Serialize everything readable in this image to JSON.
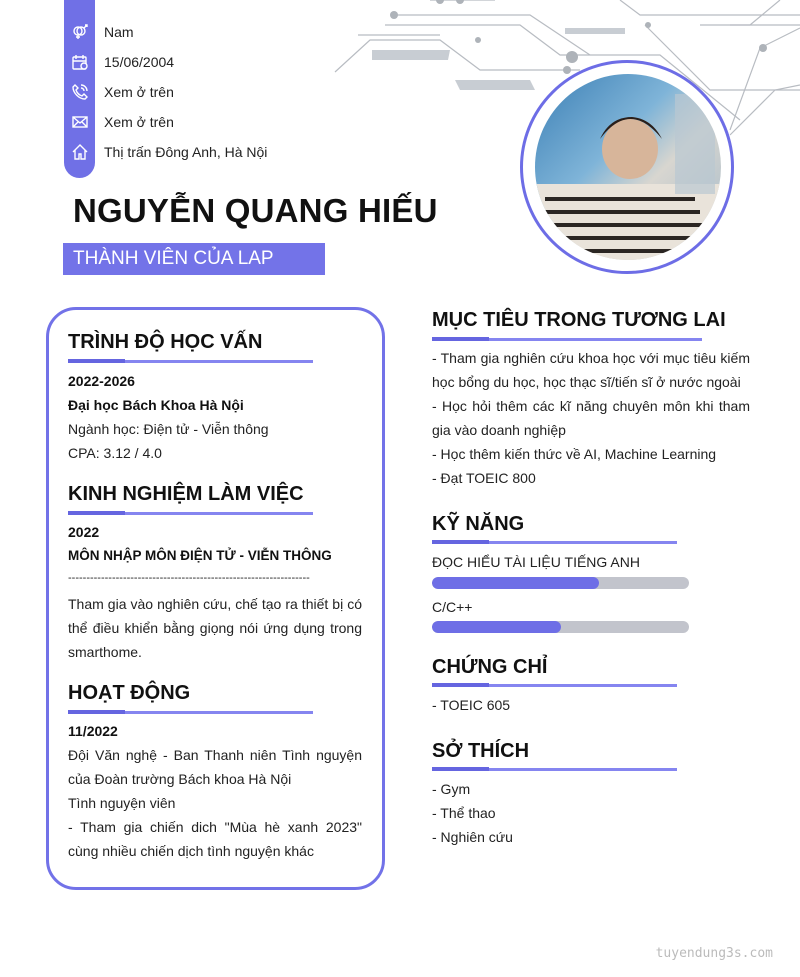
{
  "colors": {
    "accent": "#7070e6",
    "bar_track": "#c2c4cc"
  },
  "contact": [
    {
      "icon": "gender-icon",
      "text": "Nam"
    },
    {
      "icon": "calendar-icon",
      "text": "15/06/2004"
    },
    {
      "icon": "phone-icon",
      "text": "Xem ở trên"
    },
    {
      "icon": "mail-icon",
      "text": "Xem ở trên"
    },
    {
      "icon": "home-icon",
      "text": "Thị trấn Đông Anh, Hà Nội"
    }
  ],
  "name": "NGUYỄN QUANG HIẾU",
  "subtitle": "THÀNH VIÊN CỦA LAP",
  "education": {
    "title": "TRÌNH ĐỘ HỌC VẤN",
    "period": "2022-2026",
    "school": "Đại học Bách Khoa Hà Nội",
    "major": "Ngành học: Điện tử - Viễn thông",
    "cpa": "CPA: 3.12 / 4.0"
  },
  "experience": {
    "title": "KINH NGHIỆM LÀM VIỆC",
    "year": "2022",
    "role": "MÔN NHẬP MÔN ĐIỆN TỬ - VIỄN THÔNG",
    "divider": "------------------------------------------------------------------",
    "desc": "Tham gia vào nghiên cứu, chế tạo ra thiết bị có thể điều khiển bằng giọng nói ứng dụng trong smarthome."
  },
  "activities": {
    "title": "HOẠT ĐỘNG",
    "date": "11/2022",
    "org": "Đội Văn nghệ - Ban Thanh niên Tình nguyện của Đoàn trường Bách khoa Hà Nội",
    "role": "Tình nguyện viên",
    "desc": "- Tham gia chiến dich \"Mùa hè xanh 2023\" cùng nhiều chiến dịch tình nguyện khác"
  },
  "goals": {
    "title": "MỤC TIÊU TRONG TƯƠNG LAI",
    "items": [
      "- Tham gia nghiên cứu khoa học với mục tiêu kiếm học bổng du học, học thạc sĩ/tiến sĩ ở nước ngoài",
      "- Học hỏi thêm các kĩ năng chuyên môn khi tham gia vào doanh nghiệp",
      "- Học thêm kiến thức về AI, Machine Learning",
      "- Đạt TOEIC 800"
    ]
  },
  "skills": {
    "title": "KỸ NĂNG",
    "items": [
      {
        "name": "ĐỌC HIỂU TÀI LIỆU  TIẾNG ANH",
        "level_percent": 65
      },
      {
        "name": "C/C++",
        "level_percent": 50
      }
    ]
  },
  "certificates": {
    "title": "CHỨNG CHỈ",
    "items": [
      "- TOEIC 605"
    ]
  },
  "hobbies": {
    "title": "SỞ THÍCH",
    "items": [
      "- Gym",
      "- Thể thao",
      "- Nghiên cứu"
    ]
  },
  "watermark": "tuyendung3s.com"
}
